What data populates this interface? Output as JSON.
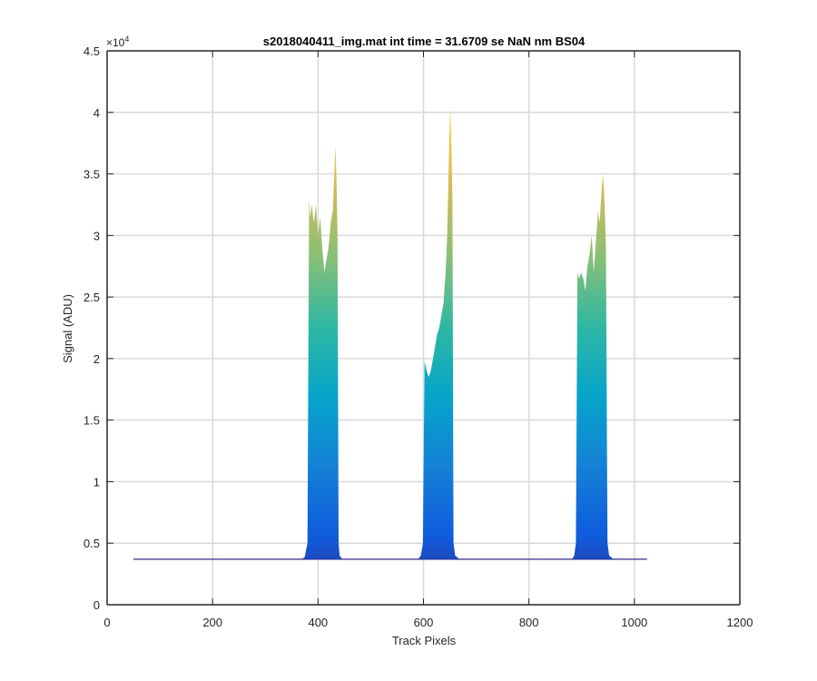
{
  "chart_data": {
    "type": "area",
    "title": "s2018040411_img.mat int time = 31.6709 se  NaN nm BS04",
    "xlabel": "Track Pixels",
    "ylabel": "Signal (ADU)",
    "xlim": [
      0,
      1200
    ],
    "ylim": [
      0,
      45000
    ],
    "x_ticks": [
      0,
      200,
      400,
      600,
      800,
      1000,
      1200
    ],
    "x_tick_labels": [
      "0",
      "200",
      "400",
      "600",
      "800",
      "1000",
      "1200"
    ],
    "y_ticks": [
      0,
      5000,
      10000,
      15000,
      20000,
      25000,
      30000,
      35000,
      40000,
      45000
    ],
    "y_tick_labels": [
      "0",
      "0.5",
      "1",
      "1.5",
      "2",
      "2.5",
      "3",
      "3.5",
      "4",
      "4.5"
    ],
    "y_exponent_label": "×10",
    "y_exponent_power": "4",
    "grid": true,
    "colormap": [
      "#352a87",
      "#0f5cdd",
      "#1481d6",
      "#06a4ca",
      "#2eb7a4",
      "#87bf77",
      "#d1bb59",
      "#fec832",
      "#f9fb0e"
    ],
    "baseline": 3700,
    "x_range": [
      50,
      1024
    ],
    "series": [
      {
        "x": [
          370,
          375,
          380,
          383,
          385,
          388,
          392,
          396,
          400,
          404,
          408,
          412,
          416,
          420,
          424,
          428,
          431,
          433,
          435,
          437,
          439,
          441,
          446
        ],
        "y": [
          3700,
          3900,
          5000,
          33000,
          31500,
          32500,
          31000,
          32500,
          30000,
          31500,
          29000,
          27000,
          28000,
          29000,
          31000,
          32000,
          35000,
          37300,
          34500,
          30000,
          5000,
          4000,
          3700
        ]
      },
      {
        "x": [
          590,
          595,
          599,
          602,
          606,
          610,
          614,
          618,
          622,
          626,
          630,
          634,
          638,
          642,
          645,
          647,
          649,
          651,
          653,
          655,
          657,
          660,
          668
        ],
        "y": [
          3700,
          4000,
          5000,
          19800,
          19000,
          18500,
          19000,
          20000,
          21000,
          22000,
          22500,
          23500,
          24500,
          27000,
          30000,
          34000,
          38000,
          40500,
          37000,
          33000,
          5000,
          4000,
          3700
        ]
      },
      {
        "x": [
          882,
          886,
          889,
          892,
          895,
          899,
          903,
          907,
          911,
          915,
          919,
          923,
          927,
          931,
          934,
          937,
          940,
          942,
          944,
          946,
          949,
          952,
          960
        ],
        "y": [
          3700,
          4000,
          5000,
          27000,
          26500,
          27000,
          26500,
          25500,
          27500,
          28500,
          30000,
          27000,
          29500,
          32000,
          31000,
          33000,
          35000,
          34000,
          32000,
          29000,
          5000,
          4000,
          3700
        ]
      }
    ]
  }
}
